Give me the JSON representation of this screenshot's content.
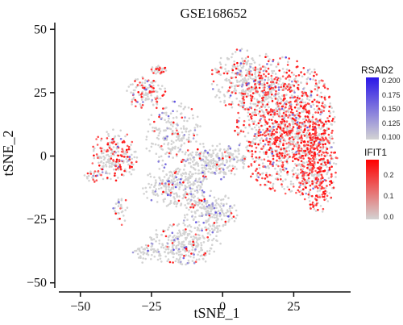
{
  "chart_data": {
    "type": "scatter",
    "title": "GSE168652",
    "xlabel": "tSNE_1",
    "ylabel": "tSNE_2",
    "xlim": [
      -57,
      45
    ],
    "ylim": [
      -52,
      52
    ],
    "x_ticks": [
      -50,
      -25,
      0,
      25
    ],
    "y_ticks": [
      -50,
      -25,
      0,
      25,
      50
    ],
    "x_tick_labels": [
      "−50",
      "−25",
      "0",
      "25"
    ],
    "y_tick_labels": [
      "−50",
      "−25",
      "0",
      "25",
      "50"
    ],
    "grid": false,
    "colors": {
      "low": "#d3d3d3",
      "rsad2_high": "#2a16e8",
      "ifit1_high": "#ff0000"
    },
    "legends": [
      {
        "name": "RSAD2",
        "position": "right-upper",
        "range": [
          0.1,
          0.2
        ],
        "ticks": [
          "0.200",
          "0.175",
          "0.150",
          "0.125",
          "0.100"
        ],
        "colors": [
          "#2a16e8",
          "#d3d3d3"
        ]
      },
      {
        "name": "IFIT1",
        "position": "right-middle",
        "range": [
          0.0,
          0.28
        ],
        "ticks": [
          "0.2",
          "0.1",
          "0.0"
        ],
        "tick_values": [
          0.2,
          0.1,
          0.0
        ],
        "colors": [
          "#ff0000",
          "#d3d3d3"
        ]
      }
    ],
    "clusters": [
      {
        "cx": 22,
        "cy": 12,
        "rx": 17,
        "ry": 26,
        "n": 1300,
        "red_frac": 0.45
      },
      {
        "cx": 33,
        "cy": -2,
        "rx": 7,
        "ry": 20,
        "n": 450,
        "red_frac": 0.6
      },
      {
        "cx": 8,
        "cy": 30,
        "rx": 12,
        "ry": 12,
        "n": 350,
        "red_frac": 0.18
      },
      {
        "cx": -3,
        "cy": -2,
        "rx": 11,
        "ry": 7,
        "n": 250,
        "red_frac": 0.05
      },
      {
        "cx": -27,
        "cy": 25,
        "rx": 7,
        "ry": 6,
        "n": 120,
        "red_frac": 0.25
      },
      {
        "cx": -17,
        "cy": 8,
        "rx": 10,
        "ry": 13,
        "n": 220,
        "red_frac": 0.1
      },
      {
        "cx": -16,
        "cy": -12,
        "rx": 12,
        "ry": 8,
        "n": 260,
        "red_frac": 0.05
      },
      {
        "cx": -38,
        "cy": 0,
        "rx": 8,
        "ry": 10,
        "n": 230,
        "red_frac": 0.35
      },
      {
        "cx": -5,
        "cy": -22,
        "rx": 10,
        "ry": 8,
        "n": 230,
        "red_frac": 0.04
      },
      {
        "cx": -14,
        "cy": -35,
        "rx": 13,
        "ry": 8,
        "n": 280,
        "red_frac": 0.05
      },
      {
        "cx": -27,
        "cy": -38,
        "rx": 5,
        "ry": 4,
        "n": 45,
        "red_frac": 0.05
      },
      {
        "cx": -46,
        "cy": -8,
        "rx": 3,
        "ry": 3,
        "n": 25,
        "red_frac": 0.35
      },
      {
        "cx": -36,
        "cy": -21,
        "rx": 2.5,
        "ry": 6,
        "n": 30,
        "red_frac": 0.2
      },
      {
        "cx": -22,
        "cy": 34,
        "rx": 3,
        "ry": 2,
        "n": 30,
        "red_frac": 0.4
      }
    ]
  }
}
